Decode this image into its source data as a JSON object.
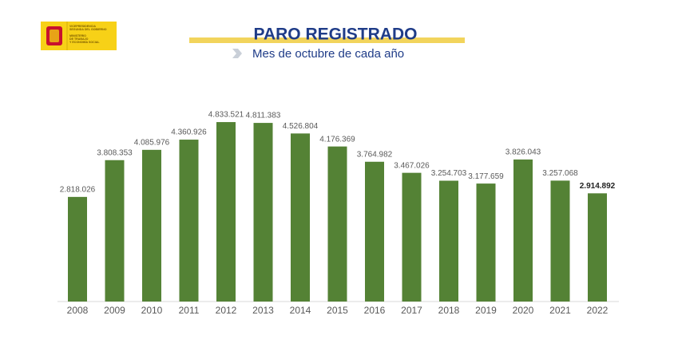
{
  "logo": {
    "lines": [
      "VICEPRESIDENCIA",
      "SEGUNDA DEL GOBIERNO",
      "MINISTERIO",
      "DE TRABAJO",
      "Y ECONOMÍA SOCIAL"
    ]
  },
  "chart_data": {
    "type": "bar",
    "title": "PARO REGISTRADO",
    "subtitle": "Mes de octubre de cada año",
    "categories": [
      "2008",
      "2009",
      "2010",
      "2011",
      "2012",
      "2013",
      "2014",
      "2015",
      "2016",
      "2017",
      "2018",
      "2019",
      "2020",
      "2021",
      "2022"
    ],
    "values": [
      2818026,
      3808353,
      4085976,
      4360926,
      4833521,
      4811383,
      4526804,
      4176369,
      3764982,
      3467026,
      3254703,
      3177659,
      3826043,
      3257068,
      2914892
    ],
    "value_labels": [
      "2.818.026",
      "3.808.353",
      "4.085.976",
      "4.360.926",
      "4.833.521",
      "4.811.383",
      "4.526.804",
      "4.176.369",
      "3.764.982",
      "3.467.026",
      "3.254.703",
      "3.177.659",
      "3.826.043",
      "3.257.068",
      "2.914.892"
    ],
    "color": "#548235",
    "ylim": [
      0,
      5000000
    ]
  }
}
